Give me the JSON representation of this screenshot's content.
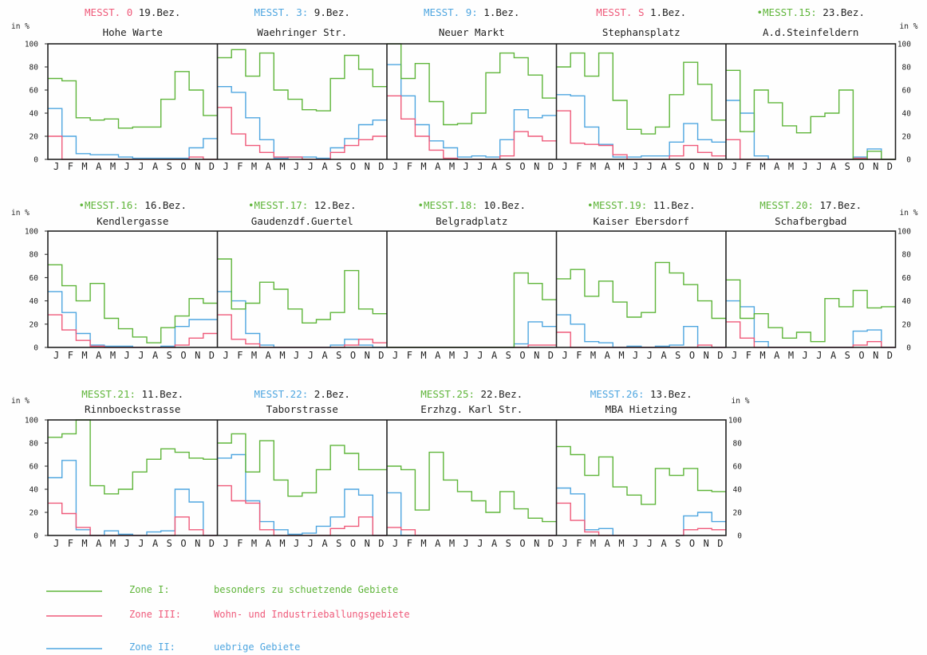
{
  "colors": {
    "green": "#5fb53a",
    "red": "#ef5a7a",
    "blue": "#4fa6e0",
    "frame": "#222222"
  },
  "axis_unit": "in %",
  "yticks": [
    0,
    20,
    40,
    60,
    80,
    100
  ],
  "month_labels": [
    "J",
    "F",
    "M",
    "A",
    "M",
    "J",
    "J",
    "A",
    "S",
    "O",
    "N",
    "D"
  ],
  "legend": [
    {
      "zone": "Zone I:",
      "text": "besonders zu schuetzende Gebiete",
      "color": "#5fb53a"
    },
    {
      "zone": "Zone III:",
      "text": "Wohn- und Industrieballungsgebiete",
      "color": "#ef5a7a"
    },
    {
      "zone": "Zone II:",
      "text": "uebrige Gebiete",
      "color": "#4fa6e0"
    }
  ],
  "chart_data": {
    "type": "line",
    "step": true,
    "ylim": [
      0,
      100
    ],
    "x": [
      "J",
      "F",
      "M",
      "A",
      "M",
      "J",
      "J",
      "A",
      "S",
      "O",
      "N",
      "D"
    ],
    "panels": [
      {
        "row": 0,
        "col": 0,
        "station": "MESST. 0",
        "station_color": "#ef5a7a",
        "bez": "19.Bez.",
        "name": "Hohe Warte",
        "series": [
          {
            "color": "#5fb53a",
            "values": [
              70,
              68,
              36,
              34,
              35,
              27,
              28,
              28,
              52,
              76,
              60,
              38
            ]
          },
          {
            "color": "#4fa6e0",
            "values": [
              44,
              20,
              5,
              4,
              4,
              2,
              1,
              1,
              1,
              1,
              10,
              18
            ]
          },
          {
            "color": "#ef5a7a",
            "values": [
              20,
              0,
              0,
              0,
              0,
              0,
              0,
              0,
              0,
              0,
              2,
              0
            ]
          }
        ]
      },
      {
        "row": 0,
        "col": 1,
        "station": "MESST. 3:",
        "station_color": "#4fa6e0",
        "bez": "9.Bez.",
        "name": "Waehringer Str.",
        "series": [
          {
            "color": "#5fb53a",
            "values": [
              88,
              95,
              72,
              92,
              60,
              52,
              43,
              42,
              70,
              90,
              78,
              63
            ]
          },
          {
            "color": "#4fa6e0",
            "values": [
              63,
              58,
              36,
              17,
              1,
              2,
              2,
              1,
              10,
              18,
              30,
              34
            ]
          },
          {
            "color": "#ef5a7a",
            "values": [
              45,
              22,
              12,
              6,
              2,
              2,
              0,
              0,
              6,
              12,
              17,
              20
            ]
          }
        ]
      },
      {
        "row": 0,
        "col": 2,
        "station": "MESST. 9:",
        "station_color": "#4fa6e0",
        "bez": "1.Bez.",
        "name": "Neuer Markt",
        "series": [
          {
            "color": "#5fb53a",
            "values": [
              100,
              70,
              83,
              50,
              30,
              31,
              40,
              75,
              92,
              88,
              73,
              53
            ]
          },
          {
            "color": "#4fa6e0",
            "values": [
              82,
              55,
              30,
              16,
              10,
              2,
              3,
              2,
              17,
              43,
              36,
              38
            ]
          },
          {
            "color": "#ef5a7a",
            "values": [
              55,
              35,
              20,
              8,
              1,
              0,
              0,
              0,
              3,
              24,
              20,
              16
            ]
          }
        ]
      },
      {
        "row": 0,
        "col": 3,
        "station": "MESST. S",
        "station_color": "#ef5a7a",
        "bez": "1.Bez.",
        "name": "Stephansplatz",
        "series": [
          {
            "color": "#5fb53a",
            "values": [
              80,
              92,
              72,
              92,
              51,
              26,
              22,
              28,
              56,
              84,
              65,
              34
            ]
          },
          {
            "color": "#4fa6e0",
            "values": [
              56,
              55,
              28,
              13,
              2,
              2,
              3,
              3,
              15,
              31,
              17,
              15
            ]
          },
          {
            "color": "#ef5a7a",
            "values": [
              42,
              14,
              13,
              12,
              4,
              0,
              0,
              0,
              3,
              12,
              6,
              3
            ]
          }
        ]
      },
      {
        "row": 0,
        "col": 4,
        "station": "•MESST.15:",
        "station_color": "#5fb53a",
        "bez": "23.Bez.",
        "name": "A.d.Steinfeldern",
        "series": [
          {
            "color": "#5fb53a",
            "values": [
              77,
              24,
              60,
              49,
              29,
              23,
              37,
              40,
              60,
              0,
              7,
              0
            ]
          },
          {
            "color": "#4fa6e0",
            "values": [
              51,
              40,
              3,
              0,
              0,
              0,
              0,
              0,
              0,
              2,
              9,
              0
            ]
          },
          {
            "color": "#ef5a7a",
            "values": [
              17,
              0,
              0,
              0,
              0,
              0,
              0,
              0,
              0,
              1,
              0,
              0
            ]
          }
        ]
      },
      {
        "row": 1,
        "col": 0,
        "station": "•MESST.16:",
        "station_color": "#5fb53a",
        "bez": "16.Bez.",
        "name": "Kendlergasse",
        "series": [
          {
            "color": "#5fb53a",
            "values": [
              71,
              53,
              40,
              55,
              25,
              16,
              9,
              4,
              17,
              27,
              42,
              38
            ]
          },
          {
            "color": "#4fa6e0",
            "values": [
              48,
              30,
              12,
              2,
              1,
              1,
              0,
              0,
              1,
              18,
              24,
              24
            ]
          },
          {
            "color": "#ef5a7a",
            "values": [
              28,
              15,
              6,
              1,
              0,
              0,
              0,
              0,
              0,
              2,
              8,
              12
            ]
          }
        ]
      },
      {
        "row": 1,
        "col": 1,
        "station": "•MESST.17:",
        "station_color": "#5fb53a",
        "bez": "12.Bez.",
        "name": "Gaudenzdf.Guertel",
        "series": [
          {
            "color": "#5fb53a",
            "values": [
              76,
              33,
              38,
              56,
              50,
              33,
              21,
              24,
              30,
              66,
              33,
              29
            ]
          },
          {
            "color": "#4fa6e0",
            "values": [
              48,
              40,
              12,
              2,
              0,
              0,
              0,
              0,
              2,
              7,
              2,
              0
            ]
          },
          {
            "color": "#ef5a7a",
            "values": [
              28,
              7,
              3,
              0,
              0,
              0,
              0,
              0,
              0,
              2,
              7,
              4
            ]
          }
        ]
      },
      {
        "row": 1,
        "col": 2,
        "station": "•MESST.18:",
        "station_color": "#5fb53a",
        "bez": "10.Bez.",
        "name": "Belgradplatz",
        "series": [
          {
            "color": "#5fb53a",
            "values": [
              0,
              0,
              0,
              0,
              0,
              0,
              0,
              0,
              0,
              64,
              55,
              41
            ]
          },
          {
            "color": "#4fa6e0",
            "values": [
              0,
              0,
              0,
              0,
              0,
              0,
              0,
              0,
              0,
              3,
              22,
              18
            ]
          },
          {
            "color": "#ef5a7a",
            "values": [
              0,
              0,
              0,
              0,
              0,
              0,
              0,
              0,
              0,
              0,
              2,
              2
            ]
          }
        ]
      },
      {
        "row": 1,
        "col": 3,
        "station": "•MESST.19:",
        "station_color": "#5fb53a",
        "bez": "11.Bez.",
        "name": "Kaiser Ebersdorf",
        "series": [
          {
            "color": "#5fb53a",
            "values": [
              59,
              67,
              44,
              57,
              39,
              26,
              30,
              73,
              64,
              54,
              40,
              25
            ]
          },
          {
            "color": "#4fa6e0",
            "values": [
              28,
              20,
              5,
              4,
              0,
              1,
              0,
              1,
              2,
              18,
              0,
              0
            ]
          },
          {
            "color": "#ef5a7a",
            "values": [
              13,
              0,
              0,
              0,
              0,
              0,
              0,
              0,
              0,
              0,
              2,
              0
            ]
          }
        ]
      },
      {
        "row": 1,
        "col": 4,
        "station": "MESST.20:",
        "station_color": "#5fb53a",
        "bez": "17.Bez.",
        "name": "Schafbergbad",
        "series": [
          {
            "color": "#5fb53a",
            "values": [
              58,
              25,
              29,
              17,
              8,
              13,
              5,
              42,
              35,
              49,
              34,
              35
            ]
          },
          {
            "color": "#4fa6e0",
            "values": [
              40,
              35,
              5,
              0,
              0,
              0,
              0,
              0,
              0,
              14,
              15,
              0
            ]
          },
          {
            "color": "#ef5a7a",
            "values": [
              22,
              8,
              0,
              0,
              0,
              0,
              0,
              0,
              0,
              2,
              5,
              0
            ]
          }
        ]
      },
      {
        "row": 2,
        "col": 0,
        "station": "MESST.21:",
        "station_color": "#5fb53a",
        "bez": "11.Bez.",
        "name": "Rinnboeckstrasse",
        "series": [
          {
            "color": "#5fb53a",
            "values": [
              85,
              88,
              100,
              43,
              36,
              40,
              55,
              66,
              75,
              72,
              67,
              66
            ]
          },
          {
            "color": "#4fa6e0",
            "values": [
              50,
              65,
              5,
              0,
              4,
              1,
              0,
              3,
              4,
              40,
              29,
              0
            ]
          },
          {
            "color": "#ef5a7a",
            "values": [
              28,
              19,
              7,
              0,
              0,
              0,
              0,
              0,
              0,
              16,
              5,
              0
            ]
          }
        ]
      },
      {
        "row": 2,
        "col": 1,
        "station": "MESST.22:",
        "station_color": "#4fa6e0",
        "bez": "2.Bez.",
        "name": "Taborstrasse",
        "series": [
          {
            "color": "#5fb53a",
            "values": [
              80,
              88,
              55,
              82,
              48,
              34,
              37,
              57,
              78,
              71,
              57,
              57
            ]
          },
          {
            "color": "#4fa6e0",
            "values": [
              67,
              70,
              30,
              12,
              5,
              1,
              2,
              8,
              16,
              40,
              35,
              0
            ]
          },
          {
            "color": "#ef5a7a",
            "values": [
              43,
              30,
              28,
              5,
              0,
              0,
              0,
              0,
              6,
              8,
              16,
              0
            ]
          }
        ]
      },
      {
        "row": 2,
        "col": 2,
        "station": "MESST.25:",
        "station_color": "#5fb53a",
        "bez": "22.Bez.",
        "name": "Erzhzg. Karl Str.",
        "series": [
          {
            "color": "#5fb53a",
            "values": [
              60,
              57,
              22,
              72,
              48,
              38,
              30,
              20,
              38,
              23,
              15,
              12
            ]
          },
          {
            "color": "#4fa6e0",
            "values": [
              37,
              0,
              0,
              0,
              0,
              0,
              0,
              0,
              0,
              0,
              0,
              0
            ]
          },
          {
            "color": "#ef5a7a",
            "values": [
              7,
              5,
              0,
              0,
              0,
              0,
              0,
              0,
              0,
              0,
              0,
              0
            ]
          }
        ]
      },
      {
        "row": 2,
        "col": 3,
        "station": "MESST.26:",
        "station_color": "#4fa6e0",
        "bez": "13.Bez.",
        "name": "MBA Hietzing",
        "series": [
          {
            "color": "#5fb53a",
            "values": [
              77,
              70,
              52,
              68,
              42,
              35,
              27,
              58,
              52,
              58,
              39,
              38
            ]
          },
          {
            "color": "#4fa6e0",
            "values": [
              41,
              36,
              5,
              6,
              0,
              0,
              0,
              0,
              0,
              17,
              20,
              12
            ]
          },
          {
            "color": "#ef5a7a",
            "values": [
              28,
              13,
              3,
              0,
              0,
              0,
              0,
              0,
              0,
              5,
              6,
              5
            ]
          }
        ]
      }
    ]
  }
}
